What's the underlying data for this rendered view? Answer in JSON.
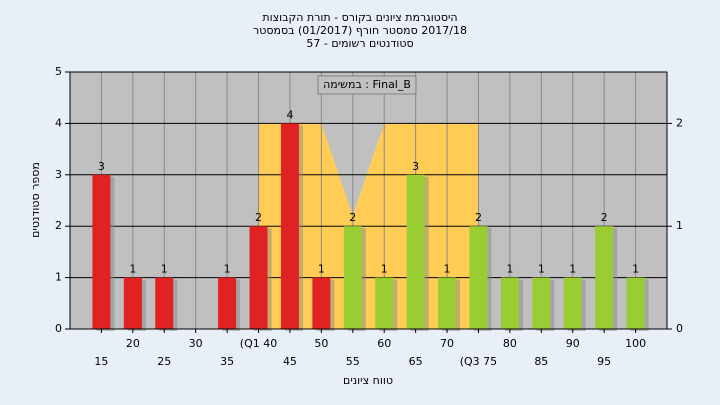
{
  "chart_data": {
    "type": "bar",
    "title": [
      "היסטוגרמת ציונים בקורס - תורת הקבוצות",
      "2017/18 סמסטר חורף  (01/2017)  בסמסטר",
      "סטודנטים רשומים - 57"
    ],
    "y_label": "מספר סטודנטים",
    "x_label": "טווח ציונים",
    "annotation": "במשימה : Final_B",
    "categories": [
      "15",
      "20",
      "25",
      "30",
      "35",
      "(Q1 40",
      "45",
      "50",
      "55",
      "60",
      "65",
      "70",
      "(Q3 75",
      "80",
      "85",
      "90",
      "95",
      "100"
    ],
    "values": [
      3,
      1,
      1,
      0,
      1,
      2,
      4,
      1,
      2,
      1,
      3,
      1,
      2,
      1,
      1,
      1,
      2,
      1
    ],
    "colors": [
      "#e02222",
      "#e02222",
      "#e02222",
      "#e02222",
      "#e02222",
      "#e02222",
      "#e02222",
      "#e02222",
      "#9acd32",
      "#9acd32",
      "#9acd32",
      "#9acd32",
      "#9acd32",
      "#9acd32",
      "#9acd32",
      "#9acd32",
      "#9acd32",
      "#9acd32"
    ],
    "area": {
      "axis": "y2",
      "color": "#ffcc55",
      "values": [
        null,
        null,
        null,
        null,
        null,
        2,
        2,
        2,
        1.1,
        2,
        2,
        2,
        2,
        null,
        null,
        null,
        null,
        null
      ]
    },
    "ylim": [
      0,
      5
    ],
    "yticks": [
      0,
      1,
      2,
      3,
      4,
      5
    ],
    "y2lim": [
      0,
      2.5
    ],
    "y2ticks": [
      0,
      1,
      2
    ],
    "grid": true
  }
}
